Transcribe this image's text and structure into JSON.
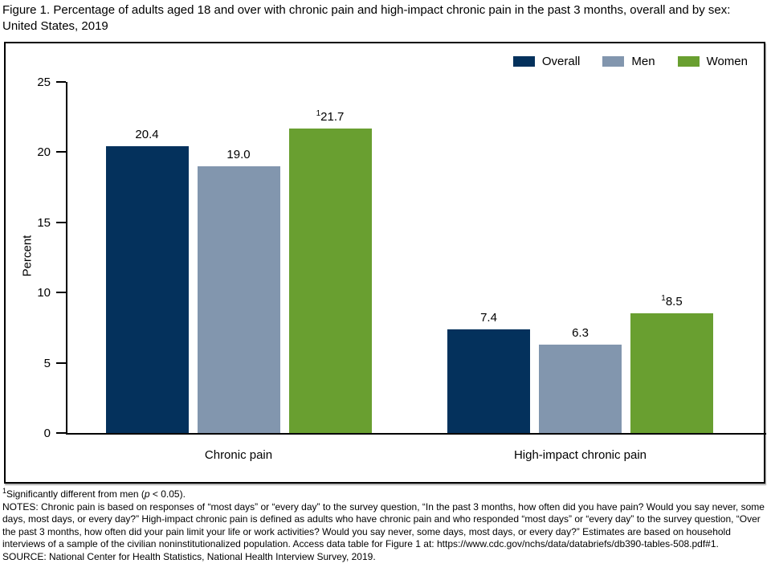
{
  "title": "Figure 1. Percentage of adults aged 18 and over with chronic pain and high-impact chronic pain in the past 3 months, overall and by sex: United States, 2019",
  "chart_data": {
    "type": "bar",
    "title": "Percentage of adults aged 18 and over with chronic pain and high-impact chronic pain in the past 3 months, overall and by sex: United States, 2019",
    "categories": [
      "Chronic pain",
      "High-impact chronic pain"
    ],
    "series": [
      {
        "name": "Overall",
        "color": "#04315c",
        "values": [
          20.4,
          7.4
        ],
        "value_labels": [
          "20.4",
          "7.4"
        ]
      },
      {
        "name": "Men",
        "color": "#8296ae",
        "values": [
          19.0,
          6.3
        ],
        "value_labels": [
          "19.0",
          "6.3"
        ]
      },
      {
        "name": "Women",
        "color": "#699f30",
        "values": [
          21.7,
          8.5
        ],
        "value_labels": [
          "21.7",
          "8.5"
        ],
        "superscript": "1"
      }
    ],
    "xlabel": "",
    "ylabel": "Percent",
    "ylim": [
      0,
      25
    ],
    "yticks": [
      "0",
      "5",
      "10",
      "15",
      "20",
      "25"
    ],
    "grid": false,
    "legend_position": "top-right"
  },
  "footnotes": {
    "sig_sup": "1",
    "sig_pre": "Significantly different from men (",
    "sig_p": "p",
    "sig_post": " < 0.05).",
    "notes": "NOTES: Chronic pain is based on responses of “most days” or “every day” to the survey question, “In the past 3 months, how often did you have pain? Would you say never, some days, most days, or every day?” High-impact chronic pain is defined as adults who have chronic pain and who responded “most days” or “every day” to the survey question, “Over the past 3 months, how often did your pain limit your life or work activities? Would you say never, some days, most days, or every day?” Estimates are based on household interviews of a sample of the civilian noninstitutionalized population. Access data table for Figure 1 at:",
    "url": "https://www.cdc.gov/nchs/data/databriefs/db390-tables-508.pdf#1.",
    "source": "SOURCE: National Center for Health Statistics, National Health Interview Survey, 2019."
  }
}
